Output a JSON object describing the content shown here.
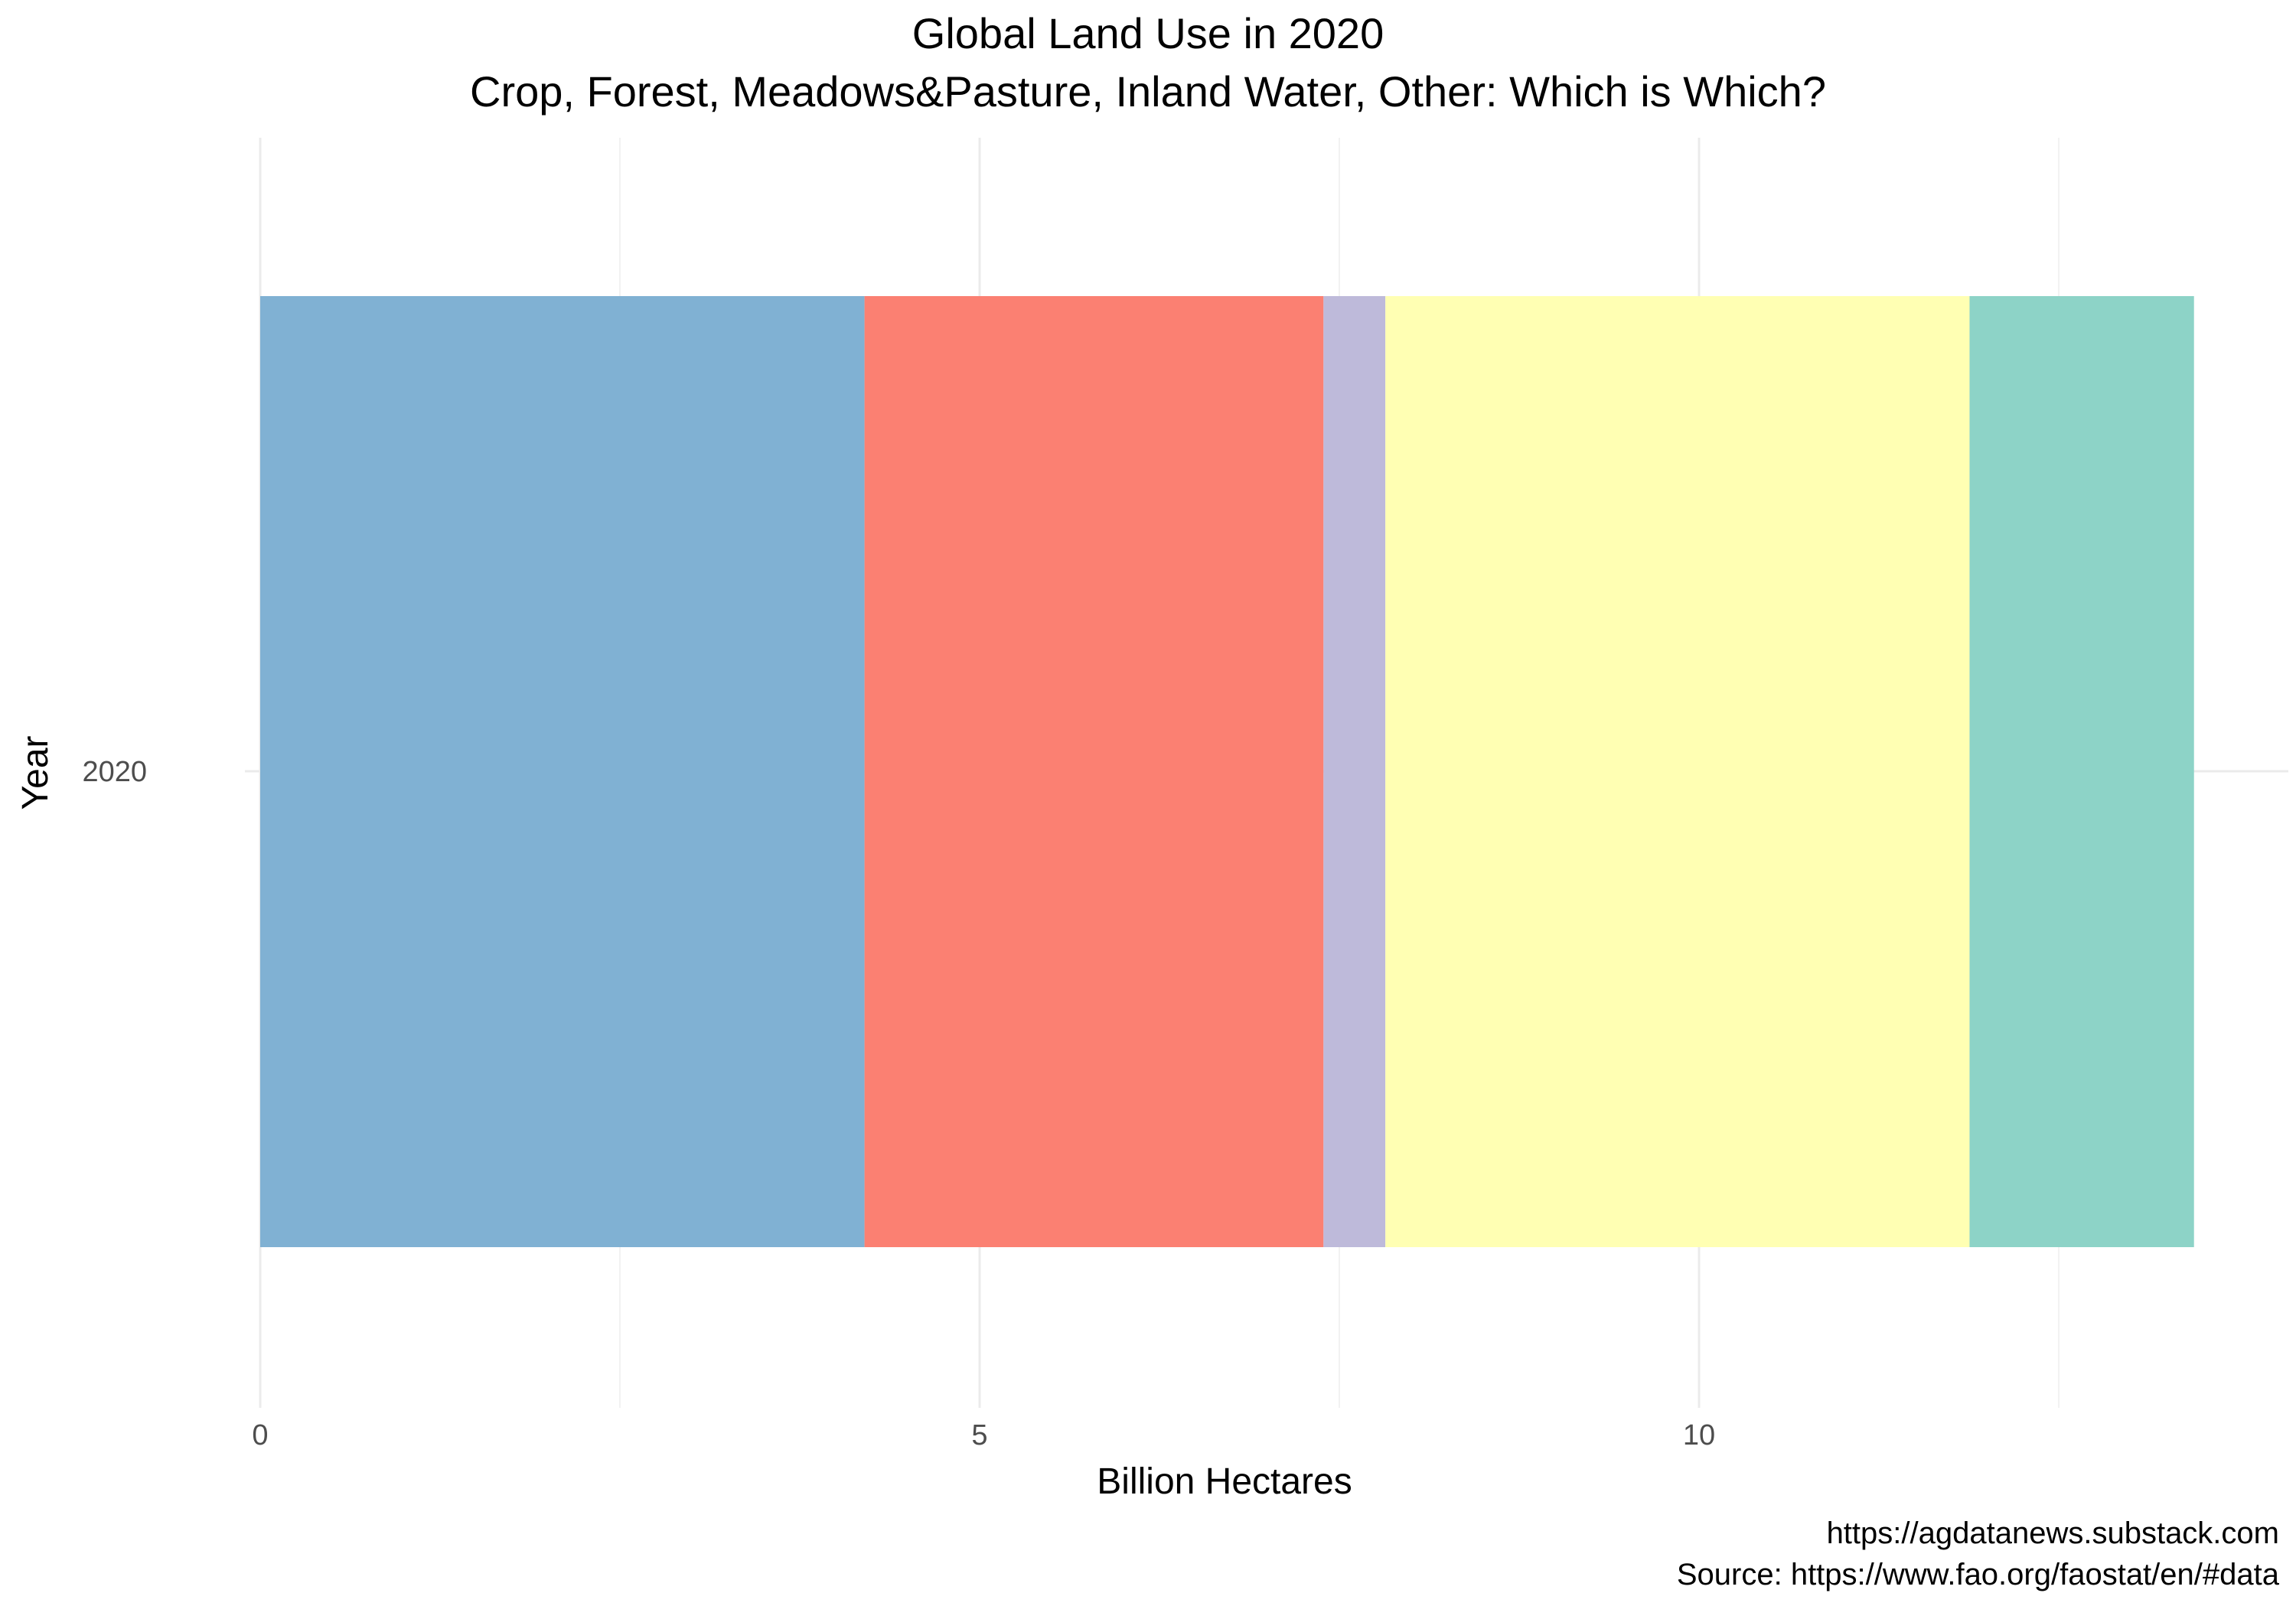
{
  "chart_data": {
    "type": "bar",
    "orientation": "horizontal",
    "stacked": true,
    "title": "Global Land Use in 2020",
    "subtitle": "Crop, Forest, Meadows&Pasture, Inland Water, Other: Which is Which?",
    "xlabel": "Billion Hectares",
    "ylabel": "Year",
    "categories": [
      "2020"
    ],
    "x_ticks": [
      "0",
      "5",
      "10"
    ],
    "xlim": [
      0,
      13.9
    ],
    "grid": true,
    "legend": "none",
    "series": [
      {
        "color": "#80B1D3",
        "values": [
          4.2
        ]
      },
      {
        "color": "#FB8072",
        "values": [
          3.19
        ]
      },
      {
        "color": "#BEBADA",
        "values": [
          0.43
        ]
      },
      {
        "color": "#FFFFB3",
        "values": [
          4.06
        ]
      },
      {
        "color": "#8DD3C7",
        "values": [
          1.56
        ]
      }
    ],
    "caption": [
      "https://agdatanews.substack.com",
      "Source: https://www.fao.org/faostat/en/#data"
    ]
  }
}
